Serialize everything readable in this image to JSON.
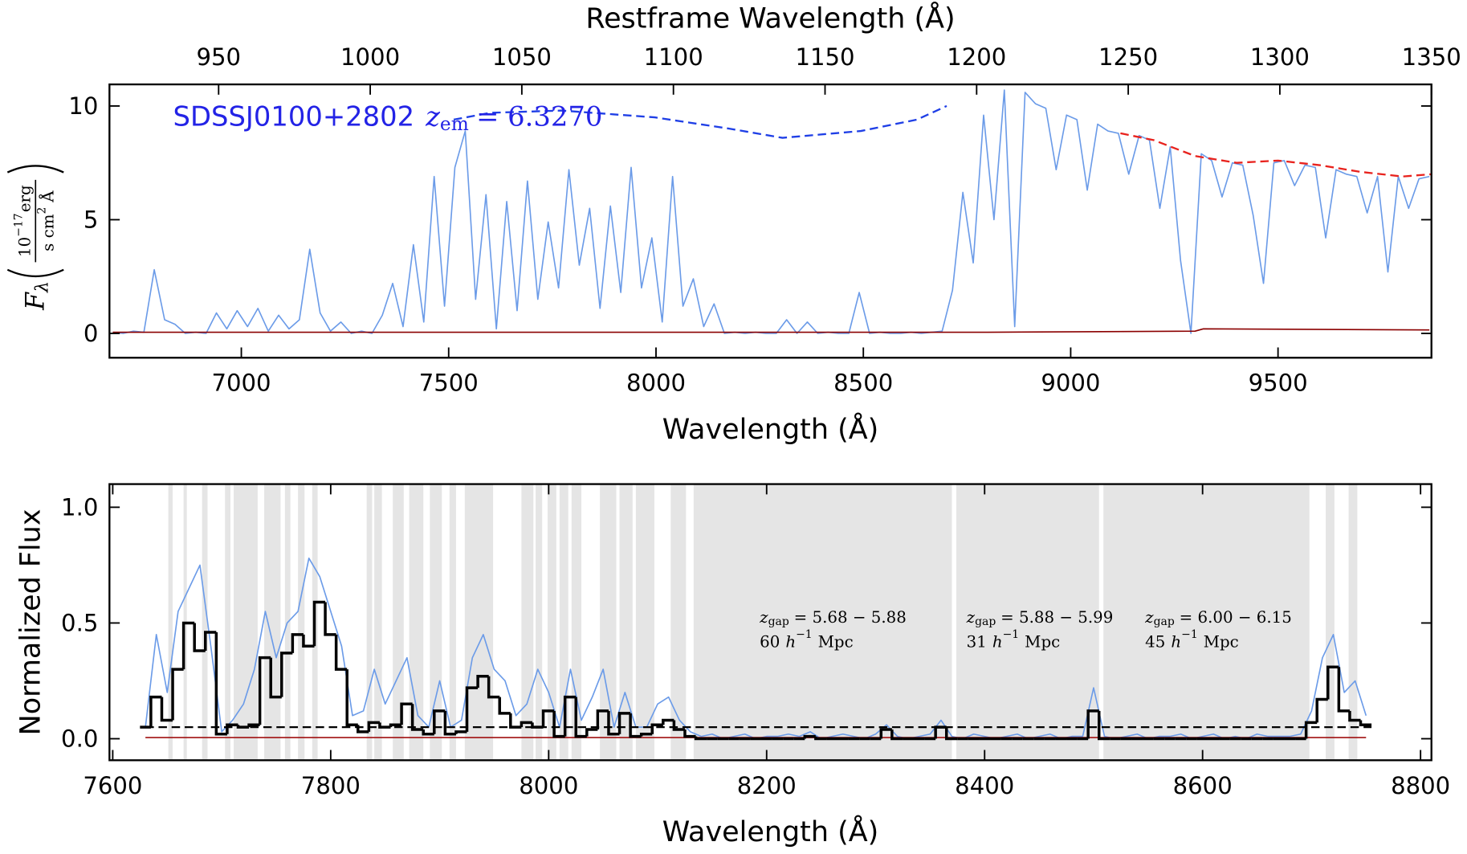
{
  "chart_data": [
    {
      "type": "line",
      "annotation": {
        "name": "SDSSJ0100+2802",
        "symbol": "z",
        "subscript": "em",
        "value": "= 6.3270",
        "color": "#2323e6"
      },
      "xlabel": "Wavelength (Å)",
      "x2label": "Restframe Wavelength (Å)",
      "ylabel": {
        "symbol": "F",
        "subscript": "λ",
        "numerator": "10",
        "numerator_exponent": "−17",
        "numerator_unit": "erg",
        "denominator": "s cm",
        "denominator_exponent": "2",
        "denominator_unit": "Å"
      },
      "xlim": [
        6682,
        9870
      ],
      "xticks": [
        7000,
        7500,
        8000,
        8500,
        9000,
        9500
      ],
      "x2lim": [
        914,
        1350
      ],
      "x2ticks": [
        950,
        1000,
        1050,
        1100,
        1150,
        1200,
        1250,
        1300,
        1350
      ],
      "ylim": [
        -1.07,
        10.95
      ],
      "yticks": [
        0,
        5,
        10
      ],
      "series": [
        {
          "color": "#6b9be8",
          "style": "solid",
          "x": [
            6690,
            6715,
            6740,
            6765,
            6790,
            6815,
            6840,
            6865,
            6890,
            6915,
            6940,
            6965,
            6990,
            7015,
            7040,
            7065,
            7090,
            7115,
            7140,
            7165,
            7190,
            7215,
            7240,
            7265,
            7290,
            7315,
            7340,
            7365,
            7390,
            7415,
            7440,
            7465,
            7490,
            7515,
            7540,
            7565,
            7590,
            7615,
            7640,
            7665,
            7690,
            7715,
            7740,
            7765,
            7790,
            7815,
            7840,
            7865,
            7890,
            7915,
            7940,
            7965,
            7990,
            8015,
            8040,
            8065,
            8090,
            8115,
            8140,
            8165,
            8190,
            8215,
            8240,
            8265,
            8290,
            8315,
            8340,
            8365,
            8390,
            8415,
            8440,
            8465,
            8490,
            8515,
            8540,
            8565,
            8590,
            8615,
            8640,
            8665,
            8690,
            8715,
            8740,
            8765,
            8790,
            8815,
            8840,
            8865,
            8890,
            8915,
            8940,
            8965,
            8990,
            9015,
            9040,
            9065,
            9090,
            9115,
            9140,
            9165,
            9190,
            9215,
            9240,
            9265,
            9290,
            9315,
            9340,
            9365,
            9390,
            9415,
            9440,
            9465,
            9490,
            9515,
            9540,
            9565,
            9590,
            9615,
            9640,
            9665,
            9690,
            9715,
            9740,
            9765,
            9790,
            9815,
            9840,
            9865
          ],
          "values": [
            0.05,
            0,
            0.1,
            0.05,
            2.8,
            0.6,
            0.4,
            0,
            0.05,
            0,
            0.9,
            0.2,
            1.0,
            0.3,
            1.1,
            0.1,
            0.8,
            0.2,
            0.6,
            3.7,
            0.9,
            0.1,
            0.5,
            0,
            0.1,
            0,
            0.8,
            2.2,
            0.3,
            3.9,
            0.5,
            6.9,
            1.2,
            7.3,
            8.9,
            1.5,
            6.1,
            0.2,
            5.8,
            1.0,
            6.7,
            1.5,
            4.9,
            2.0,
            7.2,
            3.0,
            5.5,
            1.1,
            5.6,
            1.8,
            7.3,
            2.0,
            4.2,
            0.5,
            6.9,
            1.2,
            2.4,
            0.3,
            1.3,
            0,
            0.05,
            0,
            0.05,
            0,
            0,
            0.6,
            0,
            0.5,
            0,
            0.05,
            0,
            0,
            1.8,
            0,
            0.05,
            0,
            0,
            0.05,
            0,
            0.05,
            0.1,
            1.9,
            6.2,
            3.1,
            9.6,
            5.0,
            10.7,
            0.3,
            10.6,
            10.1,
            9.9,
            7.2,
            9.6,
            9.4,
            6.3,
            9.2,
            8.9,
            8.8,
            7.0,
            8.7,
            8.5,
            5.5,
            8.2,
            3.2,
            0,
            7.9,
            7.6,
            6.0,
            7.5,
            7.4,
            5.2,
            2.2,
            7.5,
            7.6,
            6.5,
            7.4,
            7.3,
            4.2,
            7.2,
            7.0,
            6.9,
            5.3,
            6.9,
            2.7,
            6.9,
            5.5,
            6.8,
            6.9
          ]
        },
        {
          "color": "#8b0000",
          "style": "solid",
          "x": [
            6690,
            8700,
            8800,
            9300,
            9320,
            9865
          ],
          "values": [
            0.05,
            0.05,
            0.05,
            0.1,
            0.2,
            0.15
          ]
        },
        {
          "color": "#e8231e",
          "style": "dashed",
          "x": [
            9120,
            9200,
            9300,
            9400,
            9500,
            9600,
            9700,
            9800,
            9870
          ],
          "values": [
            8.8,
            8.5,
            7.8,
            7.5,
            7.6,
            7.4,
            7.1,
            6.9,
            7.0
          ]
        },
        {
          "color": "#1f3fe6",
          "style": "dashed",
          "x": [
            7512,
            7600,
            7772,
            7997,
            8178,
            8305,
            8494,
            8629,
            8701
          ],
          "values": [
            9.4,
            9.7,
            9.8,
            9.5,
            9.0,
            8.6,
            8.9,
            9.4,
            10.0
          ]
        }
      ]
    },
    {
      "type": "line",
      "xlabel": "Wavelength (Å)",
      "ylabel": "Normalized Flux",
      "xlim": [
        7597,
        8810
      ],
      "xticks": [
        7600,
        7800,
        8000,
        8200,
        8400,
        8600,
        8800
      ],
      "ylim": [
        -0.093,
        1.1
      ],
      "yticks": [
        {
          "value": 0,
          "label": "0.0"
        },
        {
          "value": 0.5,
          "label": "0.5"
        },
        {
          "value": 1,
          "label": "1.0"
        }
      ],
      "shade_color": "#e5e5e5",
      "shaded_regions": [
        [
          7651,
          7655
        ],
        [
          7665,
          7668
        ],
        [
          7682,
          7687
        ],
        [
          7703,
          7708
        ],
        [
          7711,
          7733
        ],
        [
          7739,
          7754
        ],
        [
          7758,
          7763
        ],
        [
          7770,
          7776
        ],
        [
          7783,
          7788
        ],
        [
          7833,
          7838
        ],
        [
          7840,
          7847
        ],
        [
          7857,
          7867
        ],
        [
          7872,
          7885
        ],
        [
          7891,
          7902
        ],
        [
          7909,
          7915
        ],
        [
          7923,
          7949
        ],
        [
          7975,
          7986
        ],
        [
          7988,
          7994
        ],
        [
          7999,
          8007
        ],
        [
          8010,
          8018
        ],
        [
          8021,
          8030
        ],
        [
          8047,
          8062
        ],
        [
          8065,
          8077
        ],
        [
          8080,
          8097
        ],
        [
          8112,
          8126
        ],
        [
          8133,
          8370
        ],
        [
          8374,
          8505
        ],
        [
          8509,
          8698
        ],
        [
          8713,
          8721
        ],
        [
          8734,
          8742
        ]
      ],
      "annotations": [
        {
          "symbol": "z",
          "subscript": "gap",
          "range": "= 5.68 − 5.88",
          "distance": "60",
          "unit_symbol": "h",
          "unit_exponent": "−1",
          "unit": "Mpc"
        },
        {
          "symbol": "z",
          "subscript": "gap",
          "range": "= 5.88 − 5.99",
          "distance": "31",
          "unit_symbol": "h",
          "unit_exponent": "−1",
          "unit": "Mpc"
        },
        {
          "symbol": "z",
          "subscript": "gap",
          "range": "= 6.00 − 6.15",
          "distance": "45",
          "unit_symbol": "h",
          "unit_exponent": "−1",
          "unit": "Mpc"
        }
      ],
      "series": [
        {
          "color": "#6b9be8",
          "style": "solid",
          "x": [
            7630,
            7640,
            7650,
            7660,
            7670,
            7680,
            7690,
            7700,
            7710,
            7720,
            7730,
            7740,
            7750,
            7760,
            7770,
            7780,
            7790,
            7800,
            7810,
            7820,
            7830,
            7840,
            7850,
            7860,
            7870,
            7880,
            7890,
            7900,
            7910,
            7920,
            7930,
            7940,
            7950,
            7960,
            7970,
            7980,
            7990,
            8000,
            8010,
            8020,
            8030,
            8040,
            8050,
            8060,
            8070,
            8080,
            8090,
            8100,
            8110,
            8120,
            8130,
            8140,
            8150,
            8160,
            8170,
            8180,
            8190,
            8200,
            8210,
            8220,
            8230,
            8240,
            8250,
            8260,
            8270,
            8280,
            8290,
            8300,
            8310,
            8320,
            8330,
            8340,
            8350,
            8360,
            8370,
            8380,
            8390,
            8400,
            8410,
            8420,
            8430,
            8440,
            8450,
            8460,
            8470,
            8480,
            8490,
            8500,
            8510,
            8520,
            8530,
            8540,
            8550,
            8560,
            8570,
            8580,
            8590,
            8600,
            8610,
            8620,
            8630,
            8640,
            8650,
            8660,
            8670,
            8680,
            8690,
            8700,
            8710,
            8720,
            8730,
            8740,
            8750
          ],
          "values": [
            0.05,
            0.45,
            0.2,
            0.55,
            0.65,
            0.75,
            0.4,
            0.03,
            0.08,
            0.15,
            0.3,
            0.55,
            0.35,
            0.5,
            0.55,
            0.78,
            0.7,
            0.55,
            0.4,
            0.1,
            0.12,
            0.3,
            0.15,
            0.25,
            0.35,
            0.1,
            0.05,
            0.25,
            0.05,
            0.08,
            0.35,
            0.45,
            0.3,
            0.25,
            0.1,
            0.15,
            0.3,
            0.2,
            0.05,
            0.3,
            0.08,
            0.18,
            0.3,
            0.05,
            0.2,
            0.05,
            0.05,
            0.15,
            0.18,
            0.08,
            0.03,
            0.01,
            0.02,
            0,
            0.01,
            0.02,
            0,
            0.01,
            0.01,
            0.02,
            0.01,
            0.03,
            0,
            0.01,
            0.02,
            0.01,
            0,
            0.02,
            0.06,
            0.01,
            0,
            0.01,
            0.02,
            0.08,
            0.01,
            0,
            0.02,
            0.01,
            0,
            0.01,
            0.02,
            0,
            0.01,
            0.02,
            0,
            0.01,
            0.01,
            0.22,
            0.01,
            0,
            0.01,
            0.02,
            0,
            0.01,
            0.01,
            0.02,
            0,
            0.01,
            0.02,
            0,
            0.01,
            0,
            0.02,
            0.01,
            0.01,
            0.01,
            0.02,
            0.12,
            0.35,
            0.45,
            0.2,
            0.25,
            0.1
          ]
        },
        {
          "color": "#a01010",
          "style": "solid",
          "x": [
            7630,
            8750
          ],
          "values": [
            0.005,
            0.005
          ]
        },
        {
          "color": "#000000",
          "style": "solid",
          "drawstyle": "steps-mid",
          "x": [
            7630,
            7640,
            7650,
            7660,
            7670,
            7680,
            7690,
            7700,
            7710,
            7720,
            7730,
            7740,
            7750,
            7760,
            7770,
            7780,
            7790,
            7800,
            7810,
            7820,
            7830,
            7840,
            7850,
            7860,
            7870,
            7880,
            7890,
            7900,
            7910,
            7920,
            7930,
            7940,
            7950,
            7960,
            7970,
            7980,
            7990,
            8000,
            8010,
            8020,
            8030,
            8040,
            8050,
            8060,
            8070,
            8080,
            8090,
            8100,
            8110,
            8120,
            8130,
            8140,
            8150,
            8160,
            8170,
            8180,
            8190,
            8200,
            8210,
            8220,
            8230,
            8240,
            8250,
            8260,
            8270,
            8280,
            8290,
            8300,
            8310,
            8320,
            8330,
            8340,
            8350,
            8360,
            8370,
            8380,
            8390,
            8400,
            8410,
            8420,
            8430,
            8440,
            8450,
            8460,
            8470,
            8480,
            8490,
            8500,
            8510,
            8520,
            8530,
            8540,
            8550,
            8560,
            8570,
            8580,
            8590,
            8600,
            8610,
            8620,
            8630,
            8640,
            8650,
            8660,
            8670,
            8680,
            8690,
            8700,
            8710,
            8720,
            8730,
            8740,
            8750
          ],
          "values": [
            0.05,
            0.18,
            0.08,
            0.3,
            0.5,
            0.38,
            0.46,
            0.02,
            0.06,
            0.05,
            0.06,
            0.35,
            0.18,
            0.37,
            0.45,
            0.4,
            0.59,
            0.45,
            0.3,
            0.06,
            0.03,
            0.07,
            0.05,
            0.06,
            0.15,
            0.04,
            0.02,
            0.12,
            0.02,
            0.03,
            0.22,
            0.27,
            0.18,
            0.11,
            0.05,
            0.07,
            0.05,
            0.12,
            0.01,
            0.18,
            0.01,
            0.04,
            0.12,
            0.02,
            0.11,
            0.01,
            0.02,
            0.06,
            0.08,
            0.04,
            0.01,
            0,
            0,
            0,
            0,
            0,
            0,
            0,
            0,
            0,
            0,
            0.01,
            0,
            0,
            0,
            0,
            0,
            0,
            0.04,
            0,
            0,
            0,
            0,
            0.05,
            0,
            0,
            0,
            0,
            0,
            0,
            0,
            0,
            0,
            0,
            0,
            0,
            0,
            0.12,
            0,
            0,
            0,
            0,
            0,
            0,
            0,
            0,
            0,
            0,
            0,
            0,
            0,
            0,
            0,
            0,
            0,
            0,
            0,
            0.07,
            0.17,
            0.31,
            0.12,
            0.08,
            0.06
          ]
        },
        {
          "color": "#000000",
          "style": "dashed",
          "x": [
            7630,
            8755
          ],
          "values": [
            0.05,
            0.05
          ]
        }
      ]
    }
  ]
}
